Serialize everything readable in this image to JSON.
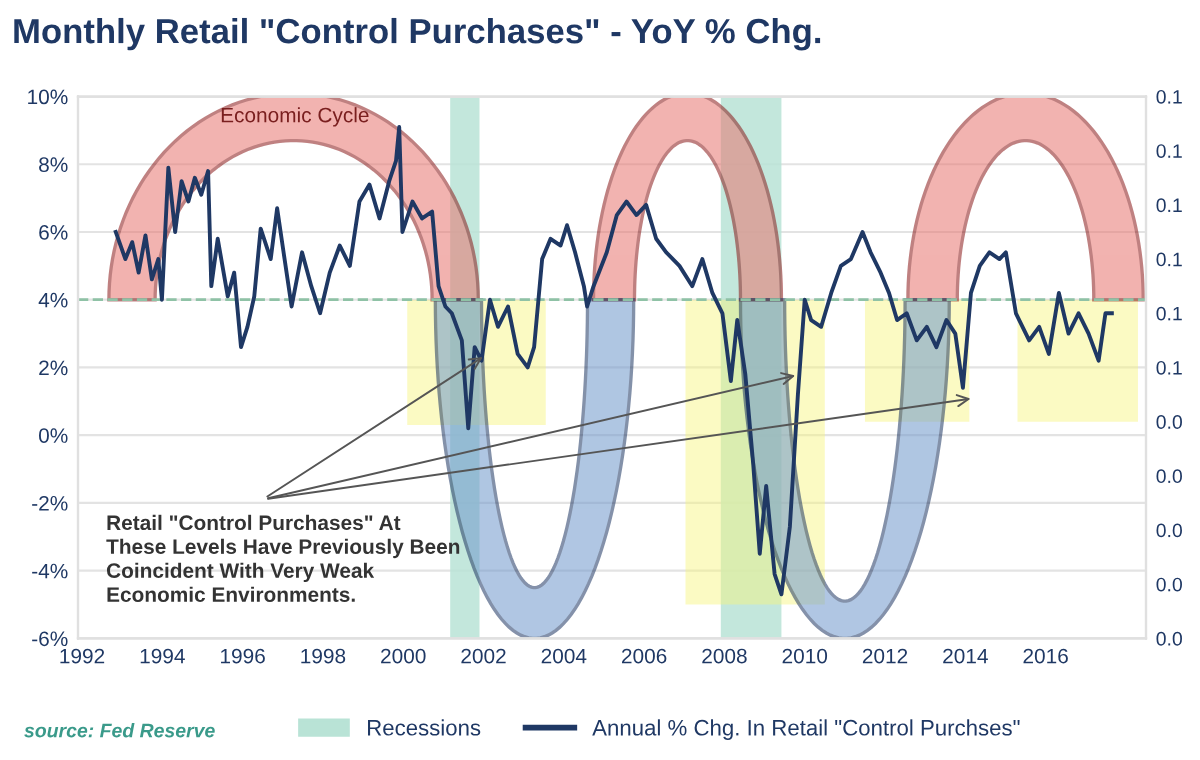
{
  "chart_data": {
    "type": "line",
    "title": "Monthly Retail \"Control Purchases\" - YoY % Chg.",
    "x": [
      1992.84,
      1993.08,
      1993.25,
      1993.41,
      1993.58,
      1993.74,
      1993.9,
      1993.99,
      1994.15,
      1994.32,
      1994.48,
      1994.65,
      1994.81,
      1994.97,
      1995.14,
      1995.22,
      1995.38,
      1995.63,
      1995.79,
      1995.96,
      1996.12,
      1996.29,
      1996.45,
      1996.7,
      1996.86,
      1997.02,
      1997.22,
      1997.48,
      1997.71,
      1997.93,
      1998.17,
      1998.42,
      1998.67,
      1998.91,
      1999.16,
      1999.41,
      1999.65,
      1999.82,
      1999.9,
      1999.98,
      2000.23,
      2000.47,
      2000.72,
      2000.88,
      2001.05,
      2001.21,
      2001.46,
      2001.62,
      2001.78,
      2001.95,
      2002.16,
      2002.36,
      2002.61,
      2002.85,
      2003.1,
      2003.26,
      2003.46,
      2003.67,
      2003.92,
      2004.08,
      2004.28,
      2004.5,
      2004.58,
      2004.74,
      2005.07,
      2005.32,
      2005.56,
      2005.81,
      2006.05,
      2006.3,
      2006.55,
      2006.88,
      2007.2,
      2007.45,
      2007.7,
      2007.95,
      2008.16,
      2008.32,
      2008.52,
      2008.72,
      2008.88,
      2009.04,
      2009.25,
      2009.42,
      2009.63,
      2009.83,
      2010.0,
      2010.16,
      2010.41,
      2010.66,
      2010.9,
      2011.15,
      2011.44,
      2011.64,
      2011.89,
      2012.1,
      2012.3,
      2012.54,
      2012.79,
      2013.04,
      2013.28,
      2013.53,
      2013.75,
      2013.94,
      2014.14,
      2014.36,
      2014.6,
      2014.85,
      2015.01,
      2015.26,
      2015.59,
      2015.84,
      2016.08,
      2016.33,
      2016.57,
      2016.82,
      2017.07,
      2017.32,
      2017.49,
      2017.65
    ],
    "series": [
      {
        "name": "Annual % Chg. In Retail \"Control Purchses\"",
        "color": "#1f3864",
        "values": [
          6.0,
          5.2,
          5.7,
          4.8,
          5.9,
          4.6,
          5.2,
          4.0,
          7.9,
          6.0,
          7.5,
          6.9,
          7.6,
          7.1,
          7.8,
          4.4,
          5.8,
          4.1,
          4.8,
          2.6,
          3.2,
          4.1,
          6.1,
          5.2,
          6.7,
          5.4,
          3.8,
          5.4,
          4.4,
          3.6,
          4.8,
          5.6,
          5.0,
          6.9,
          7.4,
          6.4,
          7.5,
          8.1,
          9.1,
          6.0,
          6.9,
          6.4,
          6.6,
          4.4,
          3.8,
          3.6,
          2.8,
          0.2,
          2.6,
          2.2,
          4.0,
          3.2,
          3.8,
          2.4,
          2.0,
          2.6,
          5.2,
          5.8,
          5.6,
          6.2,
          5.4,
          4.4,
          3.8,
          4.4,
          5.4,
          6.5,
          6.9,
          6.5,
          6.8,
          5.8,
          5.4,
          5.0,
          4.4,
          5.2,
          4.2,
          3.6,
          1.6,
          3.4,
          1.8,
          -0.9,
          -3.5,
          -1.5,
          -4.1,
          -4.7,
          -2.7,
          1.2,
          4.0,
          3.4,
          3.2,
          4.2,
          5.0,
          5.2,
          6.0,
          5.4,
          4.8,
          4.2,
          3.4,
          3.6,
          2.8,
          3.2,
          2.6,
          3.4,
          3.0,
          1.4,
          4.2,
          5.0,
          5.4,
          5.2,
          5.4,
          3.6,
          2.8,
          3.2,
          2.4,
          4.2,
          3.0,
          3.6,
          3.0,
          2.2,
          3.6,
          3.6
        ]
      }
    ],
    "xlim": [
      1991.9,
      2018.5
    ],
    "xticks": [
      1992,
      1994,
      1996,
      1998,
      2000,
      2002,
      2004,
      2006,
      2008,
      2010,
      2012,
      2014,
      2016
    ],
    "ylim": [
      -6,
      10
    ],
    "yticks": [
      {
        "value": -6,
        "label": "-6%"
      },
      {
        "value": -4,
        "label": "-4%"
      },
      {
        "value": -2,
        "label": "-2%"
      },
      {
        "value": 0,
        "label": "0%"
      },
      {
        "value": 2,
        "label": "2%"
      },
      {
        "value": 4,
        "label": "4%"
      },
      {
        "value": 6,
        "label": "6%"
      },
      {
        "value": 8,
        "label": "8%"
      },
      {
        "value": 10,
        "label": "10%"
      }
    ],
    "y2lim": [
      0,
      0.1
    ],
    "y2ticks": [
      {
        "value": 0,
        "label": "0.0"
      },
      {
        "value": 0.01,
        "label": "0.0"
      },
      {
        "value": 0.02,
        "label": "0.0"
      },
      {
        "value": 0.03,
        "label": "0.0"
      },
      {
        "value": 0.04,
        "label": "0.0"
      },
      {
        "value": 0.05,
        "label": "0.1"
      },
      {
        "value": 0.06,
        "label": "0.1"
      },
      {
        "value": 0.07,
        "label": "0.1"
      },
      {
        "value": 0.08,
        "label": "0.1"
      },
      {
        "value": 0.09,
        "label": "0.1"
      },
      {
        "value": 0.1,
        "label": "0.1"
      }
    ],
    "bands": [
      {
        "axis": "x",
        "from": 2001.17,
        "to": 2001.9,
        "label": "Recessions",
        "color": "#b9e3d6"
      },
      {
        "axis": "x",
        "from": 2007.91,
        "to": 2009.42,
        "color": "#b9e3d6"
      }
    ],
    "ref_lines": [
      {
        "axis": "y",
        "value": 4,
        "color": "#8fc2a6",
        "line_style": "dashed"
      }
    ],
    "annotations": [
      "Economic Cycle",
      {
        "text": "Retail \"Control Purchases\" At\nThese Levels Have Previously Been\nCoincident With Very Weak\nEconomic Environments.",
        "x": 2002.1,
        "y": 2.4
      },
      "source: Fed Reserve"
    ],
    "grid": "y",
    "legend": "bottom",
    "marker": "none",
    "line_style": "solid"
  }
}
